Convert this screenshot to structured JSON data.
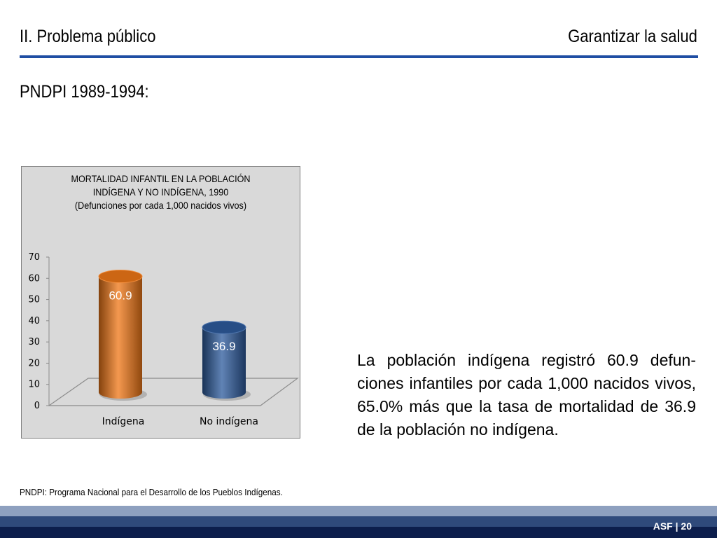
{
  "header": {
    "section": "II. Problema público",
    "topic": "Garantizar la salud"
  },
  "subtitle": "PNDPI 1989-1994:",
  "chart_title_lines": [
    "MORTALIDAD INFANTIL EN LA POBLACIÓN",
    "INDÍGENA Y NO INDÍGENA, 1990",
    "(Defunciones por cada 1,000 nacidos vivos)"
  ],
  "chart_data": {
    "type": "bar",
    "title": "MORTALIDAD INFANTIL EN LA POBLACIÓN INDÍGENA Y NO INDÍGENA, 1990 (Defunciones por cada 1,000 nacidos vivos)",
    "categories": [
      "Indígena",
      "No indígena"
    ],
    "values": [
      60.9,
      36.9
    ],
    "data_labels": [
      "60.9",
      "36.9"
    ],
    "colors": [
      "#f07818",
      "#2e5c9e"
    ],
    "ylim": [
      0,
      70
    ],
    "yticks": [
      0,
      10,
      20,
      30,
      40,
      50,
      60,
      70
    ],
    "style": "3d-cylinder",
    "grid": false,
    "legend": "none"
  },
  "body_text": "La población indígena registró 60.9 defun-ciones infantiles por cada 1,000 nacidos vivos, 65.0% más que la tasa de mortalidad de 36.9 de la población no indígena.",
  "footnote": "PNDPI: Programa Nacional para el Desarrollo de los Pueblos Indígenas.",
  "footer": {
    "tag": "ASF | 20"
  }
}
